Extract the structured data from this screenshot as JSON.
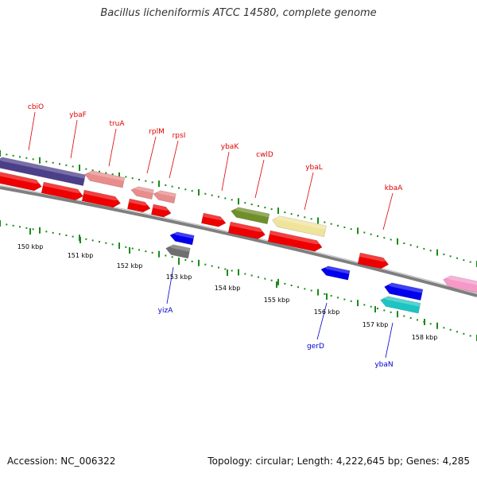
{
  "title": "Bacillus licheniformis ATCC 14580, complete genome",
  "footer": {
    "accession": "Accession: NC_006322",
    "topology": "Topology: circular; Length: 4,222,645 bp; Genes: 4,285"
  },
  "colors": {
    "backbone": "#7f7f7f",
    "dots": "#1a8a1a",
    "forward_label": "#e00000",
    "reverse_label": "#0000cc"
  },
  "scale": {
    "unit": "kbp",
    "ticks": [
      "150 kbp",
      "151 kbp",
      "152 kbp",
      "153 kbp",
      "154 kbp",
      "155 kbp",
      "156 kbp",
      "157 kbp",
      "158 kbp"
    ]
  },
  "genes": {
    "forward_labels": [
      "cbiO",
      "ybaF",
      "truA",
      "rplM",
      "rpsI",
      "ybaK",
      "cwlD",
      "ybaL",
      "kbaA"
    ],
    "reverse_labels": [
      "yizA",
      "gerD",
      "ybaN"
    ]
  }
}
